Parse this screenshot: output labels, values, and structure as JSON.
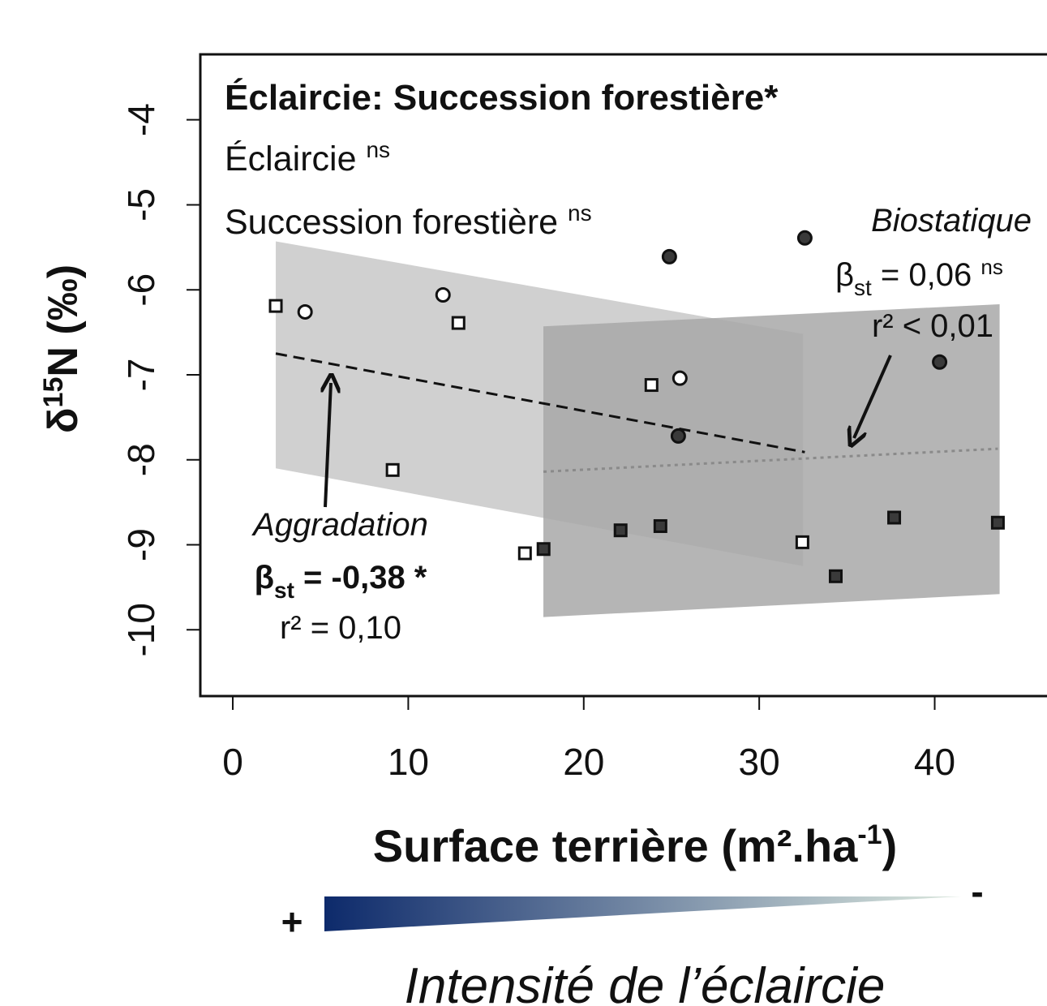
{
  "chart_data": {
    "type": "scatter",
    "xlabel": {
      "text": "Surface terrière (m².ha",
      "sup": "-1",
      "end": ")"
    },
    "ylabel": {
      "pre": "δ",
      "sup": "15",
      "post": "N (‰)"
    },
    "xlim": [
      -1.85,
      46.4
    ],
    "ylim": [
      -10.78,
      -3.23
    ],
    "xticks": [
      0,
      10,
      20,
      30,
      40
    ],
    "yticks": [
      -4,
      -5,
      -6,
      -7,
      -8,
      -9,
      -10
    ],
    "bands": [
      {
        "x": [
          2.45,
          32.5
        ],
        "upper": [
          -5.43,
          -6.52
        ],
        "lower": [
          -8.1,
          -9.25
        ],
        "color": "#c8c8c8"
      },
      {
        "x": [
          17.7,
          43.7
        ],
        "upper": [
          -6.43,
          -6.17
        ],
        "lower": [
          -9.85,
          -9.58
        ],
        "color": "#a8a8a8"
      }
    ],
    "fits": [
      {
        "x": [
          2.45,
          32.6
        ],
        "values": [
          -6.75,
          -7.91
        ],
        "color": "#111111",
        "style": "dashed"
      },
      {
        "x": [
          17.7,
          43.6
        ],
        "values": [
          -8.14,
          -7.87
        ],
        "color": "#8a8a8a",
        "style": "dotted"
      }
    ],
    "series": [
      {
        "marker": "square",
        "color": "#ffffff",
        "x": [
          2.45,
          12.86,
          9.11,
          16.65,
          23.86,
          32.46
        ],
        "values": [
          -6.19,
          -6.39,
          -8.12,
          -9.1,
          -7.12,
          -8.97
        ]
      },
      {
        "marker": "circle",
        "color": "#ffffff",
        "x": [
          4.12,
          11.98,
          25.48
        ],
        "values": [
          -6.26,
          -6.06,
          -7.04
        ]
      },
      {
        "marker": "circle",
        "color": "#3a3a3a",
        "x": [
          24.88,
          32.6,
          40.28,
          25.39
        ],
        "values": [
          -5.61,
          -5.39,
          -6.85,
          -7.72
        ]
      },
      {
        "marker": "square",
        "color": "#3a3a3a",
        "x": [
          17.71,
          22.1,
          24.37,
          34.36,
          37.69,
          43.6
        ],
        "values": [
          -9.05,
          -8.83,
          -8.78,
          -9.37,
          -8.68,
          -8.74
        ]
      }
    ],
    "annotations": {
      "title": "Éclaircie: Succession forestière*",
      "line2": {
        "text": "Éclaircie ",
        "sup": "ns"
      },
      "line3": {
        "text": "Succession forestière ",
        "sup": "ns"
      },
      "biostatique": {
        "name": "Biostatique",
        "beta": "β",
        "sub": "st",
        "coef": " = 0,06 ",
        "sig": "ns",
        "r2": "r² < 0,01"
      },
      "aggradation": {
        "name": "Aggradation",
        "beta": "β",
        "sub": "st",
        "coef": " = -0,38 *",
        "r2": "r² = 0,10"
      }
    }
  },
  "gradient": {
    "plus": "+",
    "minus": "-",
    "caption": "Intensité de l’éclaircie",
    "from": "#0d2a6b",
    "to": "#dce8de"
  }
}
